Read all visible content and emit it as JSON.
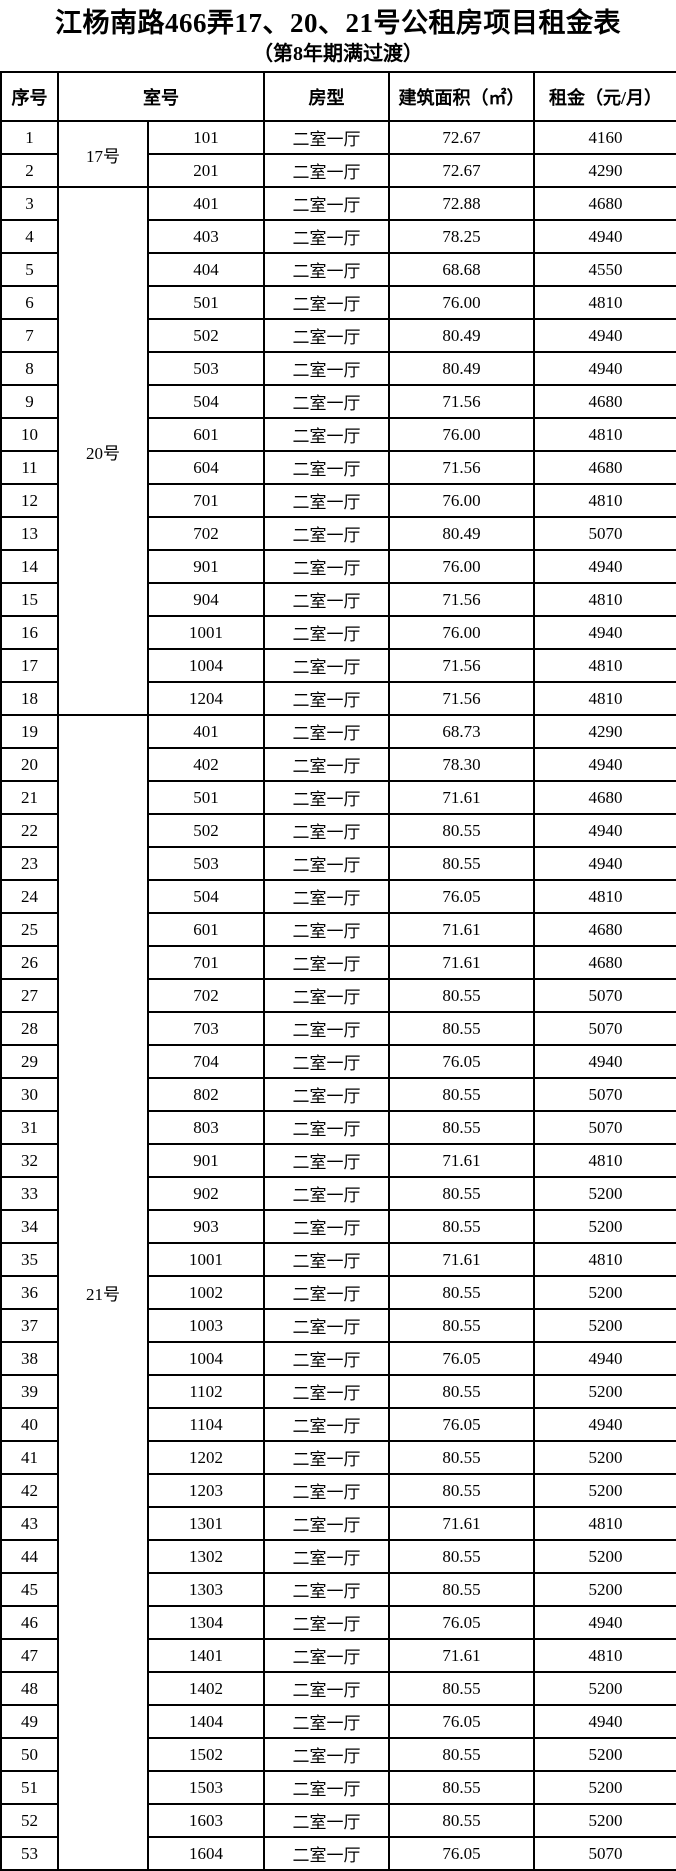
{
  "title": "江杨南路466弄17、20、21号公租房项目租金表",
  "subtitle": "（第8年期满过渡）",
  "table": {
    "headers": {
      "index": "序号",
      "room": "室号",
      "layout": "房型",
      "area": "建筑面积（㎡）",
      "rent": "租金（元/月）"
    },
    "groups": [
      {
        "building": "17号",
        "rows": [
          {
            "no": 1,
            "room": "101",
            "layout": "二室一厅",
            "area": "72.67",
            "rent": "4160"
          },
          {
            "no": 2,
            "room": "201",
            "layout": "二室一厅",
            "area": "72.67",
            "rent": "4290"
          }
        ]
      },
      {
        "building": "20号",
        "rows": [
          {
            "no": 3,
            "room": "401",
            "layout": "二室一厅",
            "area": "72.88",
            "rent": "4680"
          },
          {
            "no": 4,
            "room": "403",
            "layout": "二室一厅",
            "area": "78.25",
            "rent": "4940"
          },
          {
            "no": 5,
            "room": "404",
            "layout": "二室一厅",
            "area": "68.68",
            "rent": "4550"
          },
          {
            "no": 6,
            "room": "501",
            "layout": "二室一厅",
            "area": "76.00",
            "rent": "4810"
          },
          {
            "no": 7,
            "room": "502",
            "layout": "二室一厅",
            "area": "80.49",
            "rent": "4940"
          },
          {
            "no": 8,
            "room": "503",
            "layout": "二室一厅",
            "area": "80.49",
            "rent": "4940"
          },
          {
            "no": 9,
            "room": "504",
            "layout": "二室一厅",
            "area": "71.56",
            "rent": "4680"
          },
          {
            "no": 10,
            "room": "601",
            "layout": "二室一厅",
            "area": "76.00",
            "rent": "4810"
          },
          {
            "no": 11,
            "room": "604",
            "layout": "二室一厅",
            "area": "71.56",
            "rent": "4680"
          },
          {
            "no": 12,
            "room": "701",
            "layout": "二室一厅",
            "area": "76.00",
            "rent": "4810"
          },
          {
            "no": 13,
            "room": "702",
            "layout": "二室一厅",
            "area": "80.49",
            "rent": "5070"
          },
          {
            "no": 14,
            "room": "901",
            "layout": "二室一厅",
            "area": "76.00",
            "rent": "4940"
          },
          {
            "no": 15,
            "room": "904",
            "layout": "二室一厅",
            "area": "71.56",
            "rent": "4810"
          },
          {
            "no": 16,
            "room": "1001",
            "layout": "二室一厅",
            "area": "76.00",
            "rent": "4940"
          },
          {
            "no": 17,
            "room": "1004",
            "layout": "二室一厅",
            "area": "71.56",
            "rent": "4810"
          },
          {
            "no": 18,
            "room": "1204",
            "layout": "二室一厅",
            "area": "71.56",
            "rent": "4810"
          }
        ]
      },
      {
        "building": "21号",
        "rows": [
          {
            "no": 19,
            "room": "401",
            "layout": "二室一厅",
            "area": "68.73",
            "rent": "4290"
          },
          {
            "no": 20,
            "room": "402",
            "layout": "二室一厅",
            "area": "78.30",
            "rent": "4940"
          },
          {
            "no": 21,
            "room": "501",
            "layout": "二室一厅",
            "area": "71.61",
            "rent": "4680"
          },
          {
            "no": 22,
            "room": "502",
            "layout": "二室一厅",
            "area": "80.55",
            "rent": "4940"
          },
          {
            "no": 23,
            "room": "503",
            "layout": "二室一厅",
            "area": "80.55",
            "rent": "4940"
          },
          {
            "no": 24,
            "room": "504",
            "layout": "二室一厅",
            "area": "76.05",
            "rent": "4810"
          },
          {
            "no": 25,
            "room": "601",
            "layout": "二室一厅",
            "area": "71.61",
            "rent": "4680"
          },
          {
            "no": 26,
            "room": "701",
            "layout": "二室一厅",
            "area": "71.61",
            "rent": "4680"
          },
          {
            "no": 27,
            "room": "702",
            "layout": "二室一厅",
            "area": "80.55",
            "rent": "5070"
          },
          {
            "no": 28,
            "room": "703",
            "layout": "二室一厅",
            "area": "80.55",
            "rent": "5070"
          },
          {
            "no": 29,
            "room": "704",
            "layout": "二室一厅",
            "area": "76.05",
            "rent": "4940"
          },
          {
            "no": 30,
            "room": "802",
            "layout": "二室一厅",
            "area": "80.55",
            "rent": "5070"
          },
          {
            "no": 31,
            "room": "803",
            "layout": "二室一厅",
            "area": "80.55",
            "rent": "5070"
          },
          {
            "no": 32,
            "room": "901",
            "layout": "二室一厅",
            "area": "71.61",
            "rent": "4810"
          },
          {
            "no": 33,
            "room": "902",
            "layout": "二室一厅",
            "area": "80.55",
            "rent": "5200"
          },
          {
            "no": 34,
            "room": "903",
            "layout": "二室一厅",
            "area": "80.55",
            "rent": "5200"
          },
          {
            "no": 35,
            "room": "1001",
            "layout": "二室一厅",
            "area": "71.61",
            "rent": "4810"
          },
          {
            "no": 36,
            "room": "1002",
            "layout": "二室一厅",
            "area": "80.55",
            "rent": "5200"
          },
          {
            "no": 37,
            "room": "1003",
            "layout": "二室一厅",
            "area": "80.55",
            "rent": "5200"
          },
          {
            "no": 38,
            "room": "1004",
            "layout": "二室一厅",
            "area": "76.05",
            "rent": "4940"
          },
          {
            "no": 39,
            "room": "1102",
            "layout": "二室一厅",
            "area": "80.55",
            "rent": "5200"
          },
          {
            "no": 40,
            "room": "1104",
            "layout": "二室一厅",
            "area": "76.05",
            "rent": "4940"
          },
          {
            "no": 41,
            "room": "1202",
            "layout": "二室一厅",
            "area": "80.55",
            "rent": "5200"
          },
          {
            "no": 42,
            "room": "1203",
            "layout": "二室一厅",
            "area": "80.55",
            "rent": "5200"
          },
          {
            "no": 43,
            "room": "1301",
            "layout": "二室一厅",
            "area": "71.61",
            "rent": "4810"
          },
          {
            "no": 44,
            "room": "1302",
            "layout": "二室一厅",
            "area": "80.55",
            "rent": "5200"
          },
          {
            "no": 45,
            "room": "1303",
            "layout": "二室一厅",
            "area": "80.55",
            "rent": "5200"
          },
          {
            "no": 46,
            "room": "1304",
            "layout": "二室一厅",
            "area": "76.05",
            "rent": "4940"
          },
          {
            "no": 47,
            "room": "1401",
            "layout": "二室一厅",
            "area": "71.61",
            "rent": "4810"
          },
          {
            "no": 48,
            "room": "1402",
            "layout": "二室一厅",
            "area": "80.55",
            "rent": "5200"
          },
          {
            "no": 49,
            "room": "1404",
            "layout": "二室一厅",
            "area": "76.05",
            "rent": "4940"
          },
          {
            "no": 50,
            "room": "1502",
            "layout": "二室一厅",
            "area": "80.55",
            "rent": "5200"
          },
          {
            "no": 51,
            "room": "1503",
            "layout": "二室一厅",
            "area": "80.55",
            "rent": "5200"
          },
          {
            "no": 52,
            "room": "1603",
            "layout": "二室一厅",
            "area": "80.55",
            "rent": "5200"
          },
          {
            "no": 53,
            "room": "1604",
            "layout": "二室一厅",
            "area": "76.05",
            "rent": "5070"
          }
        ]
      }
    ]
  }
}
